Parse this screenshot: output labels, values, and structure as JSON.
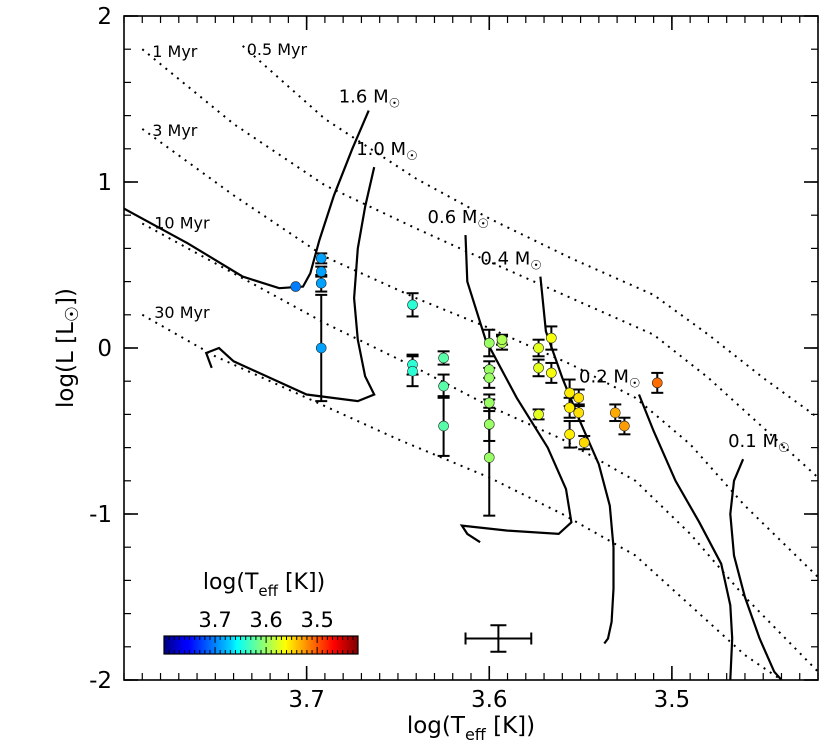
{
  "chart_data": {
    "type": "scatter",
    "xlabel": "log(T_eff [K])",
    "ylabel": "log(L [L_sun])",
    "xlim": [
      3.8,
      3.42
    ],
    "ylim": [
      -2,
      2
    ],
    "x_ticks": [
      "3.7",
      "3.6",
      "3.5"
    ],
    "y_ticks": [
      "2",
      "1",
      "0",
      "-1",
      "-2"
    ],
    "y_tick_values": [
      2,
      1,
      0,
      -1,
      -2
    ],
    "x_tick_values": [
      3.7,
      3.6,
      3.5
    ],
    "colorbar": {
      "title_main": "log(T",
      "title_sub": "eff",
      "title_end": " [K])",
      "ticks": [
        "3.7",
        "3.6",
        "3.5"
      ],
      "tick_values": [
        3.7,
        3.6,
        3.5
      ],
      "range": [
        3.8,
        3.42
      ],
      "colormap": "jet"
    },
    "isochrones": [
      {
        "label": "0.5 Myr",
        "points": [
          [
            3.735,
            1.82
          ],
          [
            3.69,
            1.38
          ],
          [
            3.64,
            1.02
          ],
          [
            3.6,
            0.78
          ],
          [
            3.555,
            0.54
          ],
          [
            3.51,
            0.32
          ],
          [
            3.48,
            0.08
          ],
          [
            3.45,
            -0.18
          ],
          [
            3.42,
            -0.42
          ]
        ]
      },
      {
        "label": "1 Myr",
        "points": [
          [
            3.79,
            1.8
          ],
          [
            3.74,
            1.35
          ],
          [
            3.69,
            0.98
          ],
          [
            3.64,
            0.72
          ],
          [
            3.6,
            0.52
          ],
          [
            3.555,
            0.3
          ],
          [
            3.51,
            0.08
          ],
          [
            3.48,
            -0.18
          ],
          [
            3.45,
            -0.48
          ],
          [
            3.42,
            -0.78
          ]
        ]
      },
      {
        "label": "3 Myr",
        "points": [
          [
            3.79,
            1.32
          ],
          [
            3.74,
            0.92
          ],
          [
            3.69,
            0.55
          ],
          [
            3.64,
            0.3
          ],
          [
            3.6,
            0.12
          ],
          [
            3.555,
            -0.1
          ],
          [
            3.52,
            -0.3
          ],
          [
            3.49,
            -0.58
          ],
          [
            3.46,
            -0.95
          ],
          [
            3.42,
            -1.38
          ]
        ]
      },
      {
        "label": "10 Myr",
        "points": [
          [
            3.79,
            0.75
          ],
          [
            3.74,
            0.45
          ],
          [
            3.69,
            0.15
          ],
          [
            3.64,
            -0.12
          ],
          [
            3.6,
            -0.35
          ],
          [
            3.56,
            -0.55
          ],
          [
            3.52,
            -0.8
          ],
          [
            3.49,
            -1.12
          ],
          [
            3.46,
            -1.5
          ],
          [
            3.42,
            -1.95
          ]
        ]
      },
      {
        "label": "30 Myr",
        "points": [
          [
            3.79,
            0.2
          ],
          [
            3.75,
            -0.05
          ],
          [
            3.7,
            -0.3
          ],
          [
            3.65,
            -0.55
          ],
          [
            3.6,
            -0.78
          ],
          [
            3.56,
            -1.0
          ],
          [
            3.52,
            -1.25
          ],
          [
            3.49,
            -1.55
          ],
          [
            3.46,
            -1.85
          ],
          [
            3.44,
            -2.0
          ]
        ]
      }
    ],
    "tracks": [
      {
        "label": "1.6 M",
        "sun_symbol": "☉",
        "points": [
          [
            3.666,
            1.43
          ],
          [
            3.675,
            1.2
          ],
          [
            3.685,
            0.92
          ],
          [
            3.693,
            0.65
          ],
          [
            3.698,
            0.45
          ],
          [
            3.702,
            0.37
          ],
          [
            3.715,
            0.36
          ],
          [
            3.735,
            0.43
          ],
          [
            3.765,
            0.63
          ],
          [
            3.8,
            0.84
          ]
        ]
      },
      {
        "label": "1.0 M",
        "sun_symbol": "☉",
        "points": [
          [
            3.663,
            1.09
          ],
          [
            3.668,
            0.85
          ],
          [
            3.672,
            0.6
          ],
          [
            3.674,
            0.3
          ],
          [
            3.672,
            0.05
          ],
          [
            3.668,
            -0.17
          ],
          [
            3.663,
            -0.28
          ],
          [
            3.672,
            -0.32
          ],
          [
            3.7,
            -0.28
          ],
          [
            3.74,
            -0.08
          ],
          [
            3.748,
            0.0
          ],
          [
            3.755,
            -0.03
          ],
          [
            3.752,
            -0.12
          ]
        ]
      },
      {
        "label": "0.6 M",
        "sun_symbol": "☉",
        "points": [
          [
            3.613,
            0.68
          ],
          [
            3.612,
            0.4
          ],
          [
            3.602,
            0.05
          ],
          [
            3.585,
            -0.3
          ],
          [
            3.568,
            -0.6
          ],
          [
            3.558,
            -0.85
          ],
          [
            3.555,
            -1.05
          ],
          [
            3.562,
            -1.12
          ],
          [
            3.59,
            -1.1
          ],
          [
            3.615,
            -1.07
          ],
          [
            3.612,
            -1.12
          ],
          [
            3.605,
            -1.17
          ]
        ]
      },
      {
        "label": "0.4 M",
        "sun_symbol": "☉",
        "points": [
          [
            3.572,
            0.43
          ],
          [
            3.569,
            0.1
          ],
          [
            3.56,
            -0.18
          ],
          [
            3.55,
            -0.45
          ],
          [
            3.54,
            -0.7
          ],
          [
            3.534,
            -0.95
          ],
          [
            3.532,
            -1.2
          ],
          [
            3.532,
            -1.45
          ],
          [
            3.533,
            -1.65
          ],
          [
            3.535,
            -1.75
          ],
          [
            3.537,
            -1.78
          ]
        ]
      },
      {
        "label": "0.2 M",
        "sun_symbol": "☉",
        "points": [
          [
            3.518,
            -0.28
          ],
          [
            3.51,
            -0.5
          ],
          [
            3.498,
            -0.8
          ],
          [
            3.485,
            -1.05
          ],
          [
            3.473,
            -1.3
          ],
          [
            3.468,
            -1.55
          ],
          [
            3.467,
            -1.75
          ],
          [
            3.468,
            -2.0
          ]
        ]
      },
      {
        "label": "0.1 M",
        "sun_symbol": "☉",
        "points": [
          [
            3.461,
            -0.67
          ],
          [
            3.466,
            -0.8
          ],
          [
            3.468,
            -1.0
          ],
          [
            3.466,
            -1.25
          ],
          [
            3.46,
            -1.5
          ],
          [
            3.452,
            -1.75
          ],
          [
            3.444,
            -1.95
          ],
          [
            3.44,
            -2.0
          ]
        ]
      }
    ],
    "stars": [
      {
        "x": 3.706,
        "y": 0.37,
        "err": 0.0
      },
      {
        "x": 3.692,
        "y": 0.54,
        "err": 0.03
      },
      {
        "x": 3.692,
        "y": 0.46,
        "err": 0.03
      },
      {
        "x": 3.692,
        "y": 0.39,
        "err": 0.05
      },
      {
        "x": 3.692,
        "y": 0.0,
        "err": 0.32
      },
      {
        "x": 3.642,
        "y": 0.26,
        "err": 0.07
      },
      {
        "x": 3.642,
        "y": -0.1,
        "err": 0.06
      },
      {
        "x": 3.642,
        "y": -0.14,
        "err": 0.09
      },
      {
        "x": 3.625,
        "y": -0.06,
        "err": 0.04
      },
      {
        "x": 3.625,
        "y": -0.23,
        "err": 0.07
      },
      {
        "x": 3.625,
        "y": -0.47,
        "err": 0.18
      },
      {
        "x": 3.6,
        "y": 0.03,
        "err": 0.08
      },
      {
        "x": 3.6,
        "y": -0.13,
        "err": 0.05
      },
      {
        "x": 3.6,
        "y": -0.18,
        "err": 0.06
      },
      {
        "x": 3.6,
        "y": -0.33,
        "err": 0.05
      },
      {
        "x": 3.6,
        "y": -0.46,
        "err": 0.1
      },
      {
        "x": 3.6,
        "y": -0.66,
        "err": 0.35
      },
      {
        "x": 3.593,
        "y": 0.03,
        "err": 0.04
      },
      {
        "x": 3.593,
        "y": 0.05,
        "err": 0.03
      },
      {
        "x": 3.573,
        "y": 0.0,
        "err": 0.05
      },
      {
        "x": 3.573,
        "y": -0.12,
        "err": 0.05
      },
      {
        "x": 3.573,
        "y": -0.4,
        "err": 0.03
      },
      {
        "x": 3.566,
        "y": 0.06,
        "err": 0.07
      },
      {
        "x": 3.566,
        "y": -0.15,
        "err": 0.06
      },
      {
        "x": 3.556,
        "y": -0.27,
        "err": 0.08
      },
      {
        "x": 3.556,
        "y": -0.36,
        "err": 0.06
      },
      {
        "x": 3.556,
        "y": -0.52,
        "err": 0.08
      },
      {
        "x": 3.551,
        "y": -0.3,
        "err": 0.05
      },
      {
        "x": 3.551,
        "y": -0.39,
        "err": 0.05
      },
      {
        "x": 3.548,
        "y": -0.57,
        "err": 0.04
      },
      {
        "x": 3.531,
        "y": -0.39,
        "err": 0.05
      },
      {
        "x": 3.526,
        "y": -0.47,
        "err": 0.05
      },
      {
        "x": 3.508,
        "y": -0.21,
        "err": 0.06
      }
    ],
    "typical_error_bar": {
      "x": 3.595,
      "y": -1.75,
      "x_err": 0.018,
      "y_err": 0.08
    }
  }
}
